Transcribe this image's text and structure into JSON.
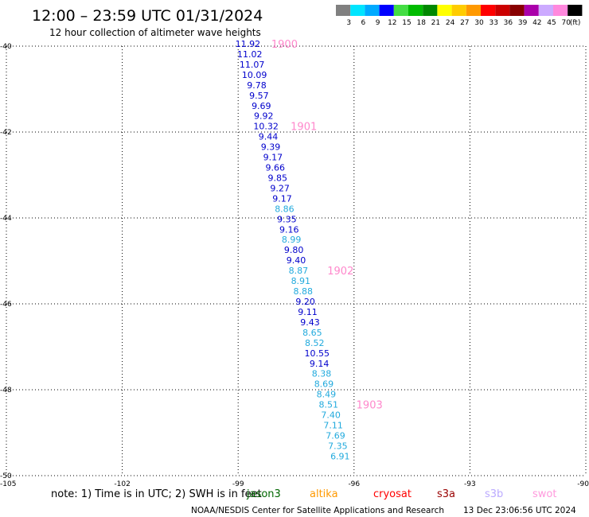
{
  "header": {
    "title": "12:00 – 23:59 UTC 01/31/2024",
    "subtitle": "12 hour collection of altimeter wave heights"
  },
  "legend": {
    "unit": "(ft)",
    "bins": [
      {
        "color": "#808080",
        "label": "3"
      },
      {
        "color": "#00e5ff",
        "label": "6"
      },
      {
        "color": "#00aaff",
        "label": "9"
      },
      {
        "color": "#0000ff",
        "label": "12"
      },
      {
        "color": "#44dd44",
        "label": "15"
      },
      {
        "color": "#00bb00",
        "label": "18"
      },
      {
        "color": "#008800",
        "label": "21"
      },
      {
        "color": "#ffff00",
        "label": "24"
      },
      {
        "color": "#ffcc00",
        "label": "27"
      },
      {
        "color": "#ff9900",
        "label": "30"
      },
      {
        "color": "#ff0000",
        "label": "33"
      },
      {
        "color": "#cc0000",
        "label": "36"
      },
      {
        "color": "#880000",
        "label": "39"
      },
      {
        "color": "#aa00aa",
        "label": "42"
      },
      {
        "color": "#ccaaff",
        "label": "45"
      },
      {
        "color": "#ff88dd",
        "label": "70"
      },
      {
        "color": "#000000",
        "label": ""
      }
    ]
  },
  "map": {
    "lon_range": [
      -105,
      -90
    ],
    "lat_range": [
      -50,
      -40
    ],
    "lon_ticks": [
      {
        "value": -105,
        "label": "-105"
      },
      {
        "value": -102,
        "label": "-102"
      },
      {
        "value": -99,
        "label": "-99"
      },
      {
        "value": -96,
        "label": "-96"
      },
      {
        "value": -93,
        "label": "-93"
      },
      {
        "value": -90,
        "label": "-90"
      }
    ],
    "lat_ticks": [
      {
        "value": -40,
        "label": "-40"
      },
      {
        "value": -42,
        "label": "-42"
      },
      {
        "value": -44,
        "label": "-44"
      },
      {
        "value": -46,
        "label": "-46"
      },
      {
        "value": -48,
        "label": "-48"
      },
      {
        "value": -50,
        "label": "-50"
      }
    ]
  },
  "observations": [
    {
      "lon": -98.75,
      "lat": -40.0,
      "value": "11.92",
      "color": "#0000cc"
    },
    {
      "lon": -98.7,
      "lat": -40.24,
      "value": "11.02",
      "color": "#0000cc"
    },
    {
      "lon": -98.64,
      "lat": -40.48,
      "value": "11.07",
      "color": "#0000cc"
    },
    {
      "lon": -98.58,
      "lat": -40.72,
      "value": "10.09",
      "color": "#0000cc"
    },
    {
      "lon": -98.52,
      "lat": -40.96,
      "value": "9.78",
      "color": "#0000cc"
    },
    {
      "lon": -98.46,
      "lat": -41.2,
      "value": "9.57",
      "color": "#0000cc"
    },
    {
      "lon": -98.4,
      "lat": -41.44,
      "value": "9.69",
      "color": "#0000cc"
    },
    {
      "lon": -98.34,
      "lat": -41.68,
      "value": "9.92",
      "color": "#0000cc"
    },
    {
      "lon": -98.28,
      "lat": -41.92,
      "value": "10.32",
      "color": "#0000cc"
    },
    {
      "lon": -98.22,
      "lat": -42.16,
      "value": "9.44",
      "color": "#0000cc"
    },
    {
      "lon": -98.16,
      "lat": -42.4,
      "value": "9.39",
      "color": "#0000cc"
    },
    {
      "lon": -98.1,
      "lat": -42.64,
      "value": "9.17",
      "color": "#0000cc"
    },
    {
      "lon": -98.04,
      "lat": -42.88,
      "value": "9.66",
      "color": "#0000cc"
    },
    {
      "lon": -97.98,
      "lat": -43.12,
      "value": "9.85",
      "color": "#0000cc"
    },
    {
      "lon": -97.92,
      "lat": -43.36,
      "value": "9.27",
      "color": "#0000cc"
    },
    {
      "lon": -97.86,
      "lat": -43.6,
      "value": "9.17",
      "color": "#0000cc"
    },
    {
      "lon": -97.8,
      "lat": -43.84,
      "value": "8.86",
      "color": "#22aadd"
    },
    {
      "lon": -97.74,
      "lat": -44.08,
      "value": "9.35",
      "color": "#0000cc"
    },
    {
      "lon": -97.68,
      "lat": -44.32,
      "value": "9.16",
      "color": "#0000cc"
    },
    {
      "lon": -97.62,
      "lat": -44.56,
      "value": "8.99",
      "color": "#22aadd"
    },
    {
      "lon": -97.56,
      "lat": -44.8,
      "value": "9.80",
      "color": "#0000cc"
    },
    {
      "lon": -97.5,
      "lat": -45.04,
      "value": "9.40",
      "color": "#0000cc"
    },
    {
      "lon": -97.44,
      "lat": -45.28,
      "value": "8.87",
      "color": "#22aadd"
    },
    {
      "lon": -97.38,
      "lat": -45.52,
      "value": "8.91",
      "color": "#22aadd"
    },
    {
      "lon": -97.32,
      "lat": -45.76,
      "value": "8.88",
      "color": "#22aadd"
    },
    {
      "lon": -97.26,
      "lat": -46.0,
      "value": "9.20",
      "color": "#0000cc"
    },
    {
      "lon": -97.2,
      "lat": -46.24,
      "value": "9.11",
      "color": "#0000cc"
    },
    {
      "lon": -97.14,
      "lat": -46.48,
      "value": "9.43",
      "color": "#0000cc"
    },
    {
      "lon": -97.08,
      "lat": -46.72,
      "value": "8.65",
      "color": "#22aadd"
    },
    {
      "lon": -97.02,
      "lat": -46.96,
      "value": "8.52",
      "color": "#22aadd"
    },
    {
      "lon": -96.96,
      "lat": -47.2,
      "value": "10.55",
      "color": "#0000cc"
    },
    {
      "lon": -96.9,
      "lat": -47.44,
      "value": "9.14",
      "color": "#0000cc"
    },
    {
      "lon": -96.84,
      "lat": -47.68,
      "value": "8.38",
      "color": "#22aadd"
    },
    {
      "lon": -96.78,
      "lat": -47.92,
      "value": "8.69",
      "color": "#22aadd"
    },
    {
      "lon": -96.72,
      "lat": -48.16,
      "value": "8.49",
      "color": "#22aadd"
    },
    {
      "lon": -96.66,
      "lat": -48.4,
      "value": "8.51",
      "color": "#22aadd"
    },
    {
      "lon": -96.6,
      "lat": -48.64,
      "value": "7.40",
      "color": "#22aadd"
    },
    {
      "lon": -96.54,
      "lat": -48.88,
      "value": "7.11",
      "color": "#22aadd"
    },
    {
      "lon": -96.48,
      "lat": -49.12,
      "value": "7.69",
      "color": "#22aadd"
    },
    {
      "lon": -96.42,
      "lat": -49.36,
      "value": "7.35",
      "color": "#22aadd"
    },
    {
      "lon": -96.36,
      "lat": -49.6,
      "value": "6.91",
      "color": "#22aadd"
    }
  ],
  "hour_marks": [
    {
      "lon": -97.8,
      "lat": -40.0,
      "label": "1900"
    },
    {
      "lon": -97.3,
      "lat": -41.92,
      "label": "1901"
    },
    {
      "lon": -96.35,
      "lat": -45.28,
      "label": "1902"
    },
    {
      "lon": -95.6,
      "lat": -48.4,
      "label": "1903"
    }
  ],
  "footer": {
    "note": "note: 1) Time is in UTC; 2) SWH is in feet",
    "satellites": [
      {
        "name": "jason3",
        "color": "#006600"
      },
      {
        "name": "altika",
        "color": "#ff9900"
      },
      {
        "name": "cryosat",
        "color": "#ff0000"
      },
      {
        "name": "s3a",
        "color": "#990000"
      },
      {
        "name": "s3b",
        "color": "#bbaaff"
      },
      {
        "name": "swot",
        "color": "#ff99dd"
      }
    ],
    "credit": "NOAA/NESDIS Center for Satellite Applications and Research",
    "generated": "13 Dec 23:06:56 UTC 2024"
  }
}
